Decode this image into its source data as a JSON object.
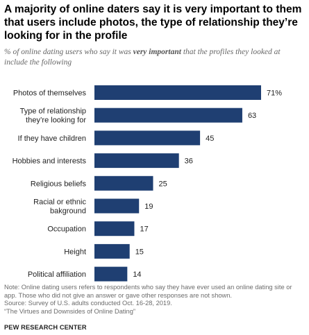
{
  "header": {
    "title": "A majority of online daters say it is very important to them that users include photos, the type of relationship they’re looking for in the profile",
    "subtitle_before": "% of online dating users who say it was ",
    "subtitle_emphasis": "very important",
    "subtitle_after": " that the profiles they looked at include the following"
  },
  "chart_data": {
    "type": "bar",
    "orientation": "horizontal",
    "categories": [
      [
        "Photos of themselves"
      ],
      [
        "Type of relationship",
        "they’re looking for"
      ],
      [
        "If they have children"
      ],
      [
        "Hobbies and interests"
      ],
      [
        "Religious beliefs"
      ],
      [
        "Racial or ethnic",
        "bakground"
      ],
      [
        "Occupation"
      ],
      [
        "Height"
      ],
      [
        "Political affiliation"
      ]
    ],
    "values": [
      71,
      63,
      45,
      36,
      25,
      19,
      17,
      15,
      14
    ],
    "value_labels": [
      "71%",
      "63",
      "45",
      "36",
      "25",
      "19",
      "17",
      "15",
      "14"
    ],
    "bar_color": "#1f3f72",
    "xlim": [
      0,
      100
    ],
    "grid": false,
    "legend": "none"
  },
  "notes": {
    "note": "Note: Online dating users refers to respondents who say they have ever used an online dating site or app. Those who did not give an answer or gave other responses are not shown.",
    "source": "Source: Survey of U.S. adults conducted Oct. 16-28, 2019.",
    "report": "“The Virtues and Downsides of Online Dating”"
  },
  "footer": {
    "org": "PEW RESEARCH CENTER"
  }
}
